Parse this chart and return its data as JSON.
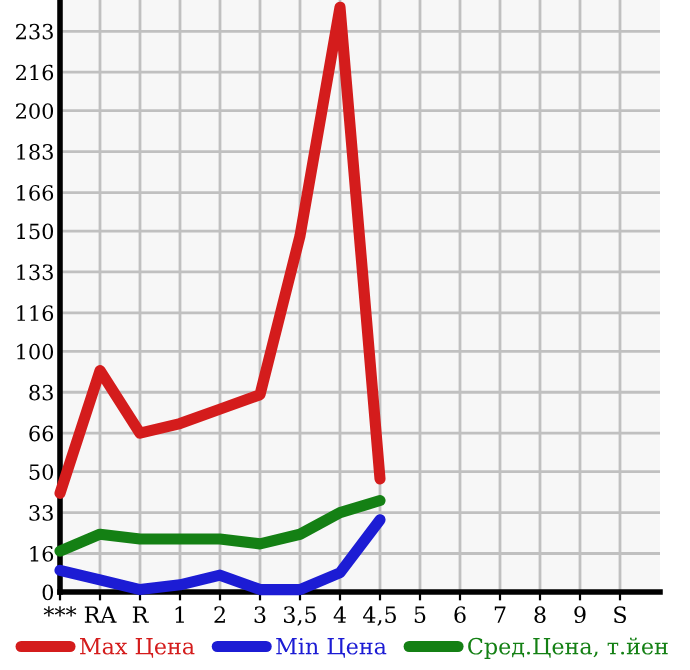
{
  "chart_data": {
    "type": "line",
    "categories": [
      "***",
      "RA",
      "R",
      "1",
      "2",
      "3",
      "3,5",
      "4",
      "4,5",
      "5",
      "6",
      "7",
      "8",
      "9",
      "S"
    ],
    "series": [
      {
        "name": "Max Цена",
        "color": "#d41c1c",
        "values": [
          41,
          92,
          66,
          70,
          76,
          82,
          148,
          243,
          47,
          null,
          null,
          null,
          null,
          null,
          null
        ]
      },
      {
        "name": "Min Цена",
        "color": "#1c1cd4",
        "values": [
          9,
          5,
          1,
          3,
          7,
          1,
          1,
          8,
          30,
          null,
          null,
          null,
          null,
          null,
          null
        ]
      },
      {
        "name": "Сред.Цена, т.йен",
        "color": "#148014",
        "values": [
          17,
          24,
          22,
          22,
          22,
          20,
          24,
          33,
          38,
          null,
          null,
          null,
          null,
          null,
          null
        ]
      }
    ],
    "ylim": [
      0,
      246
    ],
    "yticks": [
      0,
      16,
      33,
      50,
      66,
      83,
      100,
      116,
      133,
      150,
      166,
      183,
      200,
      216,
      233
    ],
    "grid": true,
    "legend": "bottom",
    "marker": "none",
    "line_style": "solid"
  }
}
